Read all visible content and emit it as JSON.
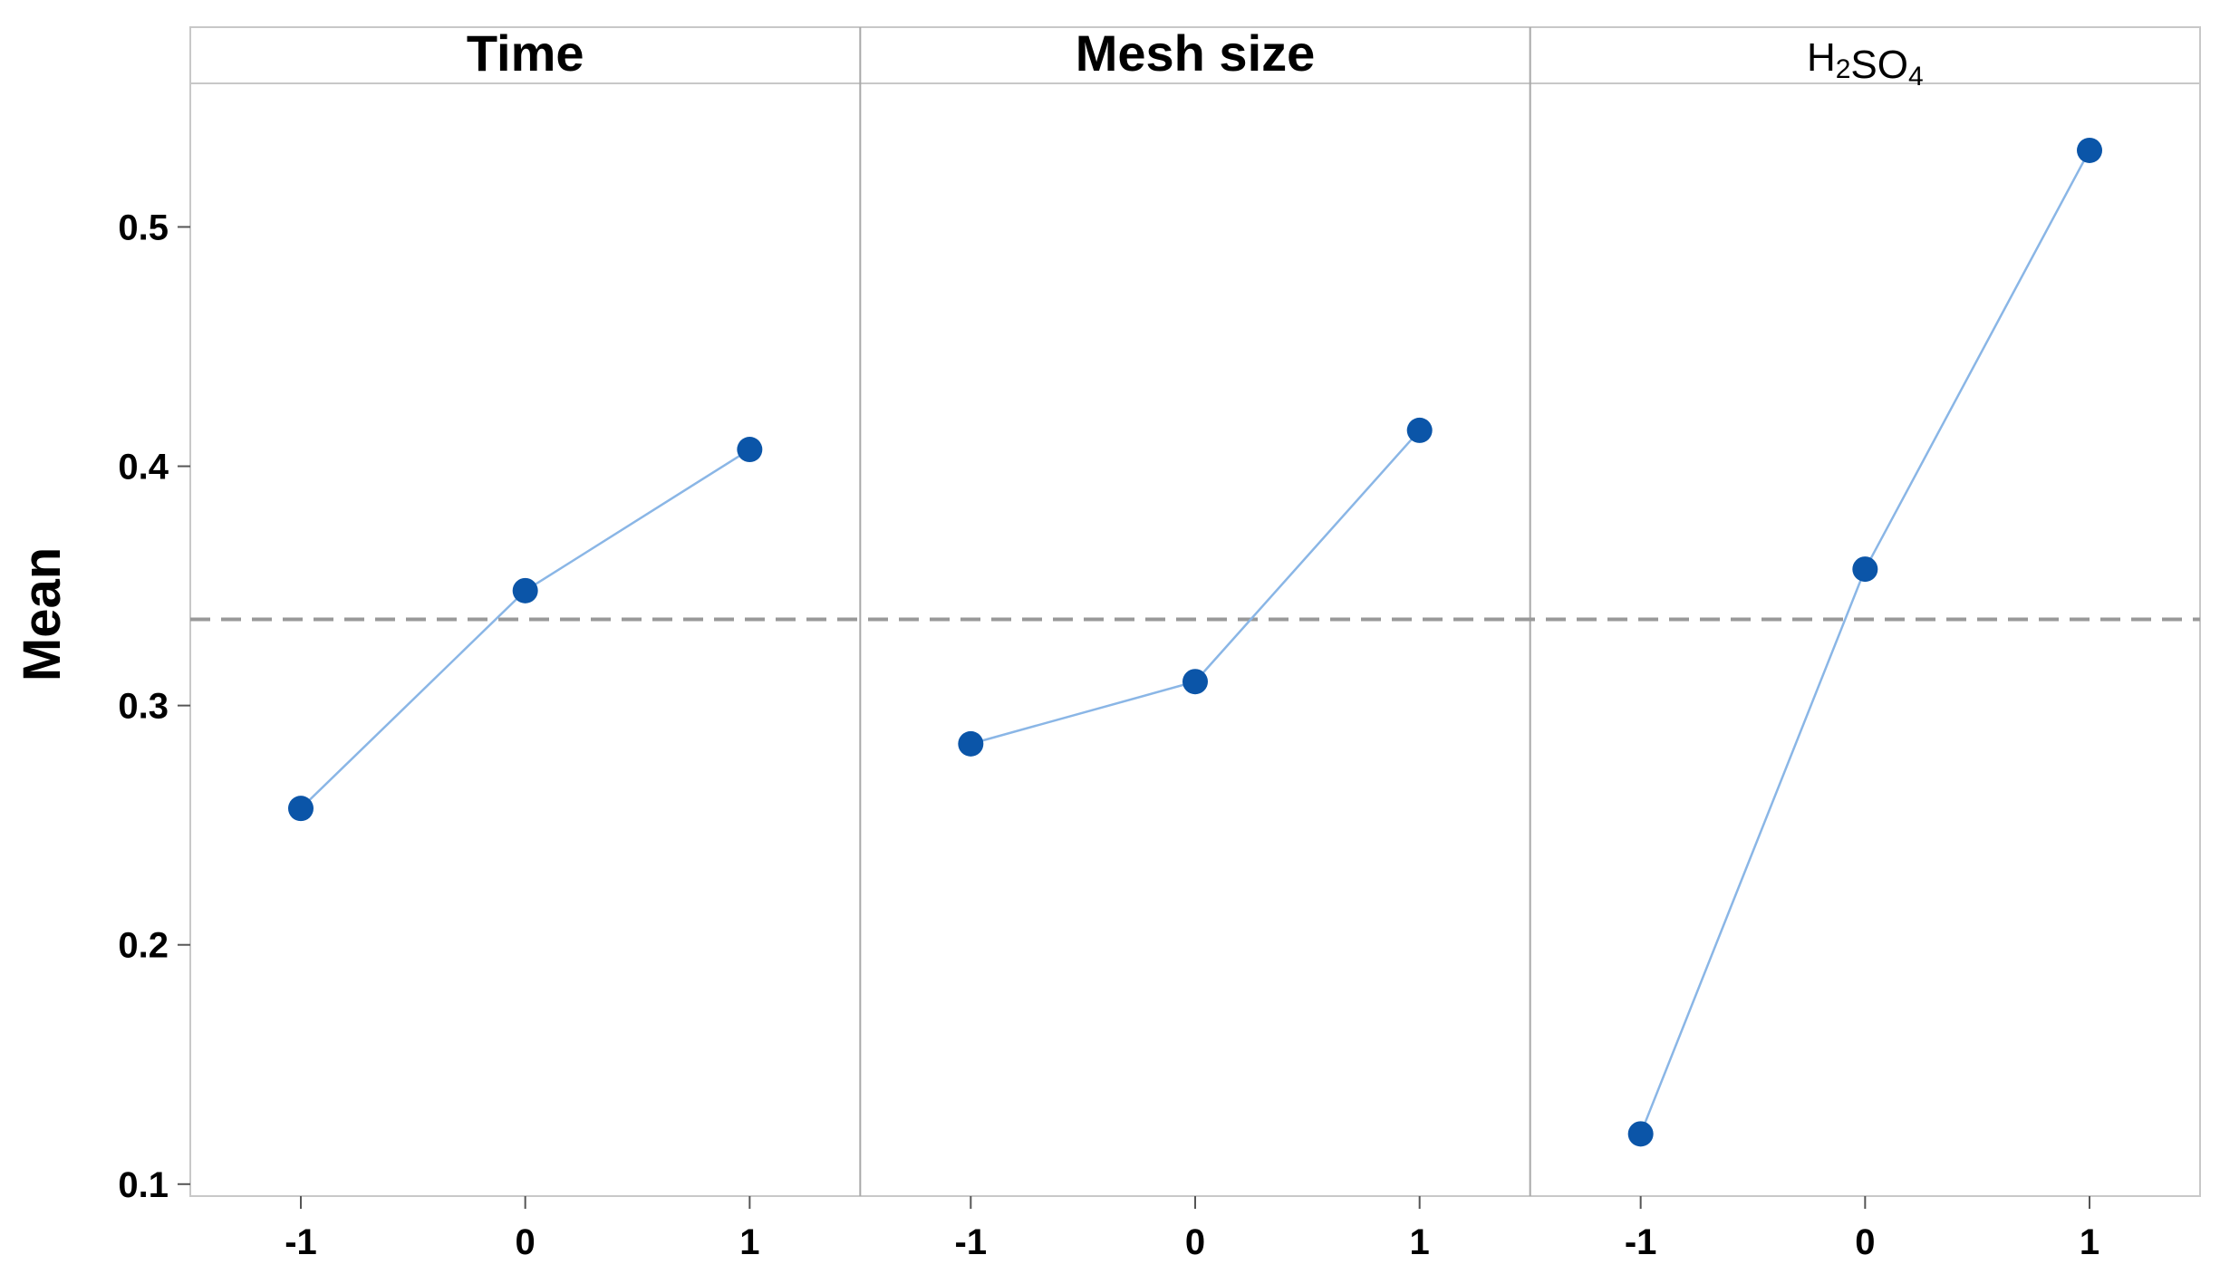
{
  "chart_data": {
    "type": "line",
    "ylabel": "Mean",
    "ylim": [
      0.095,
      0.56
    ],
    "y_ticks": [
      0.1,
      0.2,
      0.3,
      0.4,
      0.5
    ],
    "y_tick_labels": [
      "0.1",
      "0.2",
      "0.3",
      "0.4",
      "0.5"
    ],
    "reference_line": {
      "y": 0.336,
      "style": "dashed",
      "color": "#999999"
    },
    "grid": false,
    "legend": "none",
    "line_color": "#8ab6e6",
    "marker_color": "#0b55a8",
    "panels": [
      {
        "title": "Time",
        "title_style": "bold",
        "title_parts": [
          {
            "text": "Time"
          }
        ],
        "x": [
          -1,
          0,
          1
        ],
        "x_tick_labels": [
          "-1",
          "0",
          "1"
        ],
        "values": [
          0.257,
          0.348,
          0.407
        ]
      },
      {
        "title": "Mesh size",
        "title_style": "bold",
        "title_parts": [
          {
            "text": "Mesh size"
          }
        ],
        "x": [
          -1,
          0,
          1
        ],
        "x_tick_labels": [
          "-1",
          "0",
          "1"
        ],
        "values": [
          0.284,
          0.31,
          0.415
        ]
      },
      {
        "title": "H2SO4",
        "title_style": "plain",
        "title_parts": [
          {
            "text": "H"
          },
          {
            "text": "2",
            "sub": true
          },
          {
            "text": "SO"
          },
          {
            "text": "4",
            "sub": true
          }
        ],
        "x": [
          -1,
          0,
          1
        ],
        "x_tick_labels": [
          "-1",
          "0",
          "1"
        ],
        "values": [
          0.121,
          0.357,
          0.532
        ]
      }
    ]
  }
}
